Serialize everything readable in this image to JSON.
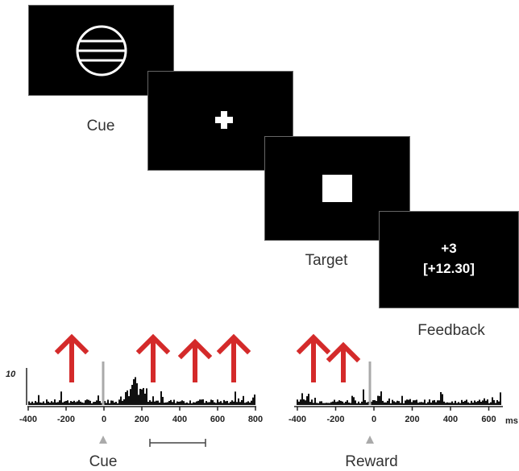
{
  "screens": {
    "cue": {
      "caption": "Cue"
    },
    "fixation": {},
    "target": {
      "caption": "Target"
    },
    "feedback": {
      "caption": "Feedback",
      "points": "+3",
      "total": "[+12.30]"
    }
  },
  "histograms": {
    "scale_label": "10",
    "left": {
      "xlabel": "Cue",
      "ticks": [
        "-400",
        "-200",
        "0",
        "200",
        "400",
        "600",
        "800"
      ],
      "arrows": 4
    },
    "right": {
      "xlabel": "Reward",
      "ticks": [
        "-400",
        "-200",
        "0",
        "200",
        "400",
        "600"
      ],
      "unit": "ms",
      "arrows": 2
    }
  },
  "colors": {
    "arrow": "#d42a2a",
    "screen": "#000000",
    "marker": "#aaaaaa"
  }
}
